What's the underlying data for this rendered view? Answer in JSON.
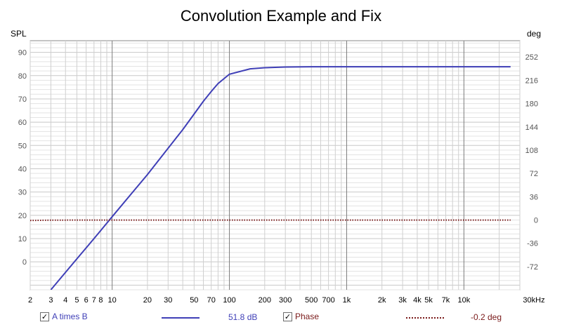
{
  "chart_data": {
    "type": "line",
    "title": "Convolution Example and Fix",
    "ylabel_left": "SPL",
    "ylabel_right": "deg",
    "xunit": "kHz",
    "xscale": "log",
    "xlim": [
      2,
      30000
    ],
    "ylim_left": [
      -12,
      95
    ],
    "ylim_right": [
      -108,
      277.2
    ],
    "yticks_left": [
      0,
      10,
      20,
      30,
      40,
      50,
      60,
      70,
      80,
      90
    ],
    "yticks_right": [
      -72,
      -36,
      0,
      36,
      72,
      108,
      144,
      180,
      216,
      252
    ],
    "xtick_labels": [
      {
        "x": 2,
        "label": "2"
      },
      {
        "x": 3,
        "label": "3"
      },
      {
        "x": 4,
        "label": "4"
      },
      {
        "x": 5,
        "label": "5"
      },
      {
        "x": 6,
        "label": "6"
      },
      {
        "x": 7,
        "label": "7"
      },
      {
        "x": 8,
        "label": "8"
      },
      {
        "x": 10,
        "label": "10"
      },
      {
        "x": 20,
        "label": "20"
      },
      {
        "x": 30,
        "label": "30"
      },
      {
        "x": 50,
        "label": "50"
      },
      {
        "x": 70,
        "label": "70"
      },
      {
        "x": 100,
        "label": "100"
      },
      {
        "x": 200,
        "label": "200"
      },
      {
        "x": 300,
        "label": "300"
      },
      {
        "x": 500,
        "label": "500"
      },
      {
        "x": 700,
        "label": "700"
      },
      {
        "x": 1000,
        "label": "1k"
      },
      {
        "x": 2000,
        "label": "2k"
      },
      {
        "x": 3000,
        "label": "3k"
      },
      {
        "x": 4000,
        "label": "4k"
      },
      {
        "x": 5000,
        "label": "5k"
      },
      {
        "x": 7000,
        "label": "7k"
      },
      {
        "x": 10000,
        "label": "10k"
      },
      {
        "x": 30000,
        "label": "30kHz"
      }
    ],
    "grid": true,
    "legend": "bottom",
    "series": [
      {
        "name": "A times B",
        "axis": "left",
        "color": "#3f3fb7",
        "style": "solid",
        "x": [
          3,
          4,
          5,
          6,
          7,
          8,
          10,
          15,
          20,
          30,
          40,
          50,
          60,
          70,
          80,
          100,
          150,
          200,
          300,
          500,
          1000,
          2000,
          5000,
          10000,
          20000,
          25000
        ],
        "y": [
          -12,
          -4.5,
          1.3,
          6,
          10,
          13.5,
          19.4,
          30,
          37.5,
          48.8,
          56.8,
          63.5,
          69,
          73.2,
          76.6,
          80.6,
          82.9,
          83.4,
          83.7,
          83.8,
          83.8,
          83.8,
          83.8,
          83.8,
          83.8,
          83.8
        ]
      },
      {
        "name": "Phase",
        "axis": "right",
        "color": "#7a1a1a",
        "style": "dotted",
        "x": [
          2,
          3,
          5,
          10,
          30,
          100,
          1000,
          10000,
          25000
        ],
        "y": [
          -0.8,
          -0.3,
          -0.2,
          -0.2,
          -0.2,
          -0.2,
          -0.2,
          -0.2,
          -0.2
        ]
      }
    ]
  },
  "legend": {
    "series1": {
      "name": "A times B",
      "value": "51.8 dB",
      "color": "#3f3fb7",
      "checked": "✓"
    },
    "series2": {
      "name": "Phase",
      "value": "-0.2 deg",
      "color": "#7a1a1a",
      "checked": "✓"
    }
  }
}
